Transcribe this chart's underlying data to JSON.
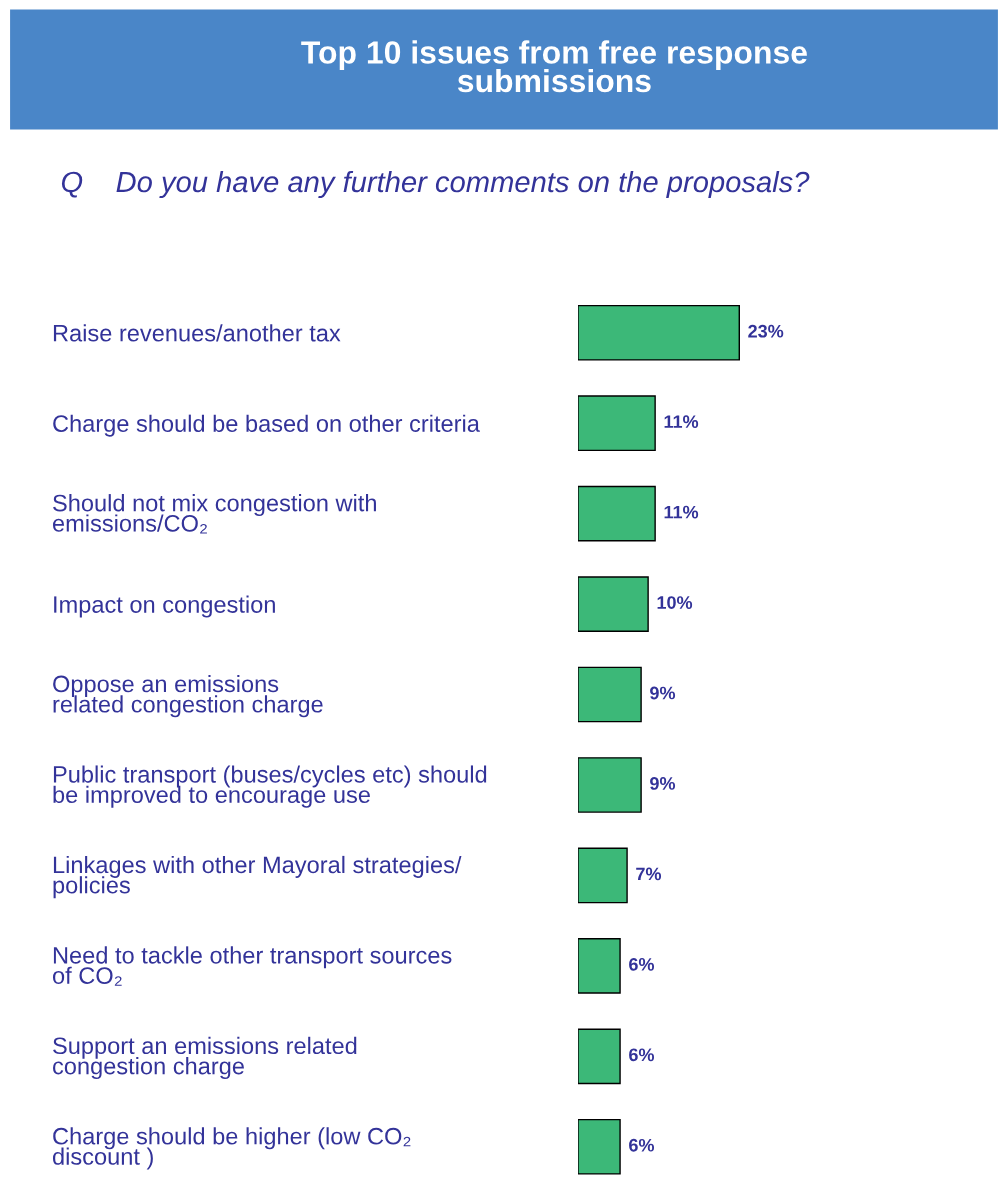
{
  "chart_data": {
    "type": "bar",
    "orientation": "horizontal",
    "title": "Top 10 issues from free response\nsubmissions",
    "subtitle": "Q    Do you have any further comments on the proposals?",
    "categories": [
      "Raise revenues/another tax",
      "Charge should be based on other criteria",
      "Should not mix congestion with\nemissions/CO₂",
      "Impact on congestion",
      "Oppose an emissions\nrelated congestion charge",
      "Public transport (buses/cycles etc) should\nbe improved to encourage use",
      "Linkages with other Mayoral strategies/\npolicies",
      "Need to tackle other transport sources\nof CO₂",
      "Support an emissions related\ncongestion charge",
      "Charge should be higher (low CO₂\ndiscount )"
    ],
    "values": [
      23,
      11,
      11,
      10,
      9,
      9,
      7,
      6,
      6,
      6
    ],
    "value_labels": [
      "23%",
      "11%",
      "11%",
      "10%",
      "9%",
      "9%",
      "7%",
      "6%",
      "6%",
      "6%"
    ],
    "color": "#3cb878",
    "grid": false,
    "legend": false
  }
}
